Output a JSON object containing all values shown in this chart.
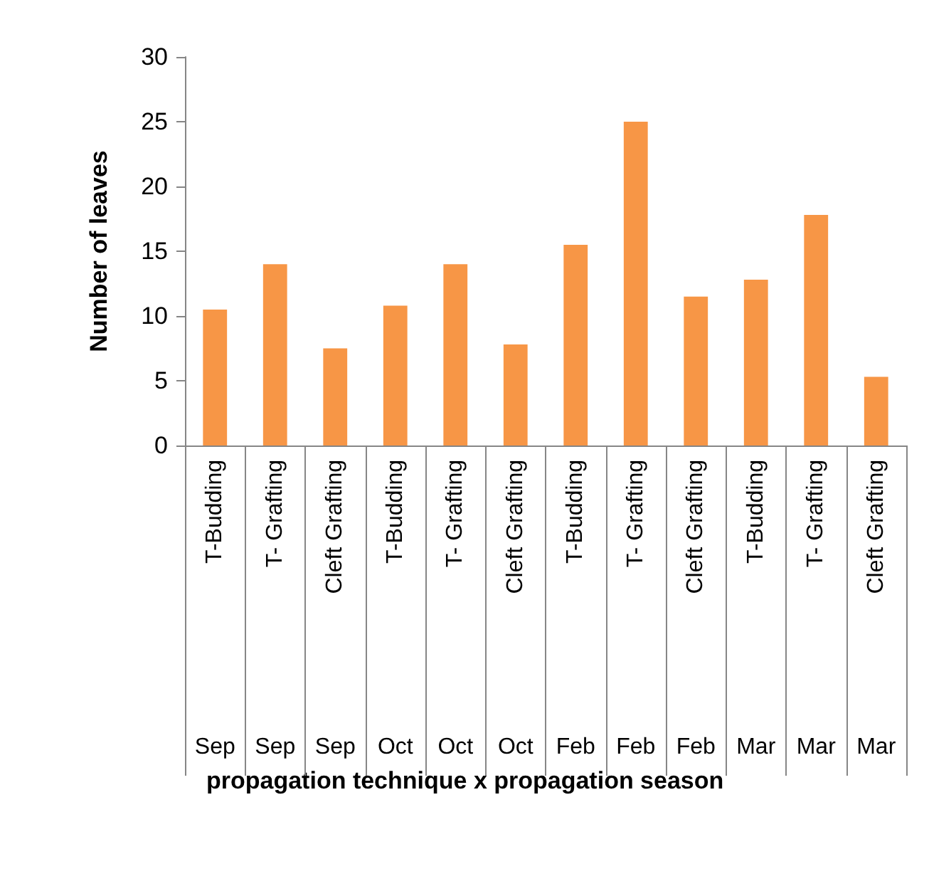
{
  "chart_data": {
    "type": "bar",
    "annotations": [
      "propagation technique x propagation season"
    ],
    "ylabel": "Number of leaves",
    "categories": [
      "T-Budding\nSep",
      "T- Grafting\nSep",
      "Cleft Grafting\nSep",
      "T-Budding\nOct",
      "T- Grafting\nOct",
      "Cleft Grafting\nOct",
      "T-Budding\nFeb",
      "T- Grafting\nFeb",
      "Cleft Grafting\nFeb",
      "T-Budding\nMar",
      "T- Grafting\nMar",
      "Cleft Grafting\nMar"
    ],
    "values": [
      10.5,
      14,
      7.5,
      10.8,
      14,
      7.8,
      15.5,
      25,
      11.5,
      12.8,
      17.8,
      5.3
    ],
    "color": "#f79646",
    "ylim": [
      0,
      30
    ],
    "yticks": [
      0,
      5,
      10,
      15,
      20,
      25,
      30
    ],
    "grid": false
  }
}
